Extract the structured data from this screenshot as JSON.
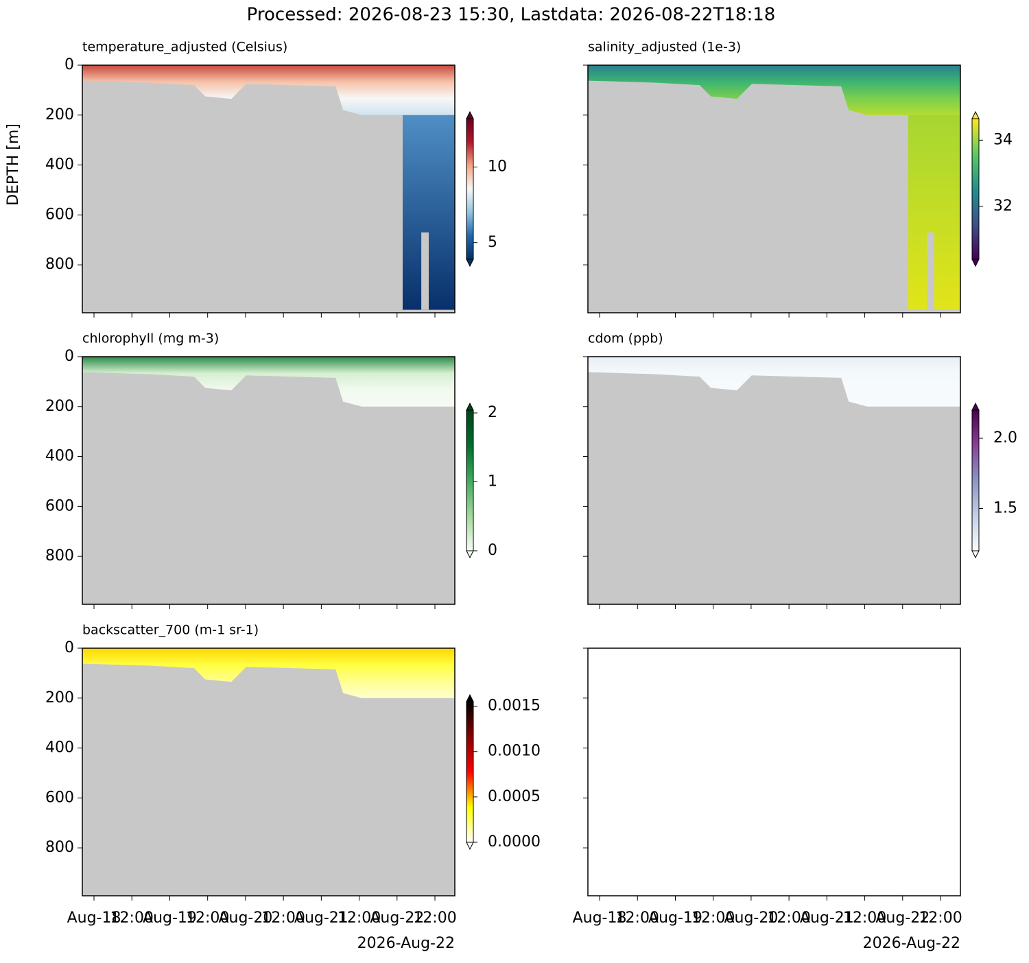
{
  "title": "Processed: 2026-08-23 15:30, Lastdata: 2026-08-22T18:18",
  "axes": {
    "ylabel": "DEPTH [m]",
    "ylim": [
      992,
      0
    ],
    "yticks": [
      0,
      200,
      400,
      600,
      800
    ],
    "xlim": [
      "2026-08-17T20:18",
      "2026-08-22T18:18"
    ],
    "xticks": [
      {
        "value": "2026-08-18T00:00",
        "label": "Aug-18"
      },
      {
        "value": "2026-08-18T12:00",
        "label": "12:00"
      },
      {
        "value": "2026-08-19T00:00",
        "label": "Aug-19"
      },
      {
        "value": "2026-08-19T12:00",
        "label": "12:00"
      },
      {
        "value": "2026-08-20T00:00",
        "label": "Aug-20"
      },
      {
        "value": "2026-08-20T12:00",
        "label": "12:00"
      },
      {
        "value": "2026-08-21T00:00",
        "label": "Aug-21"
      },
      {
        "value": "2026-08-21T12:00",
        "label": "12:00"
      },
      {
        "value": "2026-08-22T00:00",
        "label": "Aug-22"
      },
      {
        "value": "2026-08-22T12:00",
        "label": "12:00"
      }
    ],
    "xoffset_label": "2026-Aug-22"
  },
  "chart_data": [
    {
      "type": "heatmap",
      "title": "temperature_adjusted (Celsius)",
      "clim": [
        3.9,
        13.2
      ],
      "cticks": [
        5,
        10
      ],
      "colormap": [
        "#053061",
        "#2166ac",
        "#92c5de",
        "#f7f7f7",
        "#f4a582",
        "#b2182b",
        "#67001f"
      ]
    },
    {
      "type": "heatmap",
      "title": "salinity_adjusted (1e-3)",
      "clim": [
        30.4,
        34.65
      ],
      "cticks": [
        32,
        34
      ],
      "colormap": [
        "#440154",
        "#3b528b",
        "#21918c",
        "#5ec962",
        "#fde725"
      ]
    },
    {
      "type": "heatmap",
      "title": "chlorophyll (mg m-3)",
      "clim": [
        0,
        2.04
      ],
      "cticks": [
        0,
        1,
        2
      ],
      "colormap": [
        "#f7fcf5",
        "#a1d99b",
        "#41ab5d",
        "#006d2c",
        "#00441b"
      ]
    },
    {
      "type": "heatmap",
      "title": "cdom (ppb)",
      "clim": [
        1.2,
        2.2
      ],
      "cticks": [
        1.5,
        {
          "value": 2.0,
          "label": "2.0"
        }
      ],
      "colormap": [
        "#f7fcfd",
        "#bfd3e6",
        "#8c96c6",
        "#88419d",
        "#4d004b"
      ]
    },
    {
      "type": "heatmap",
      "title": "backscatter_700 (m-1 sr-1)",
      "clim": [
        0,
        0.00155
      ],
      "cticks": [
        {
          "value": 0,
          "label": "0.0000"
        },
        {
          "value": 0.0005,
          "label": "0.0005"
        },
        {
          "value": 0.001,
          "label": "0.0010"
        },
        {
          "value": 0.0015,
          "label": "0.0015"
        }
      ],
      "colormap": [
        "#ffffff",
        "#ffff00",
        "#ff0000",
        "#8b0000",
        "#000000"
      ]
    }
  ]
}
